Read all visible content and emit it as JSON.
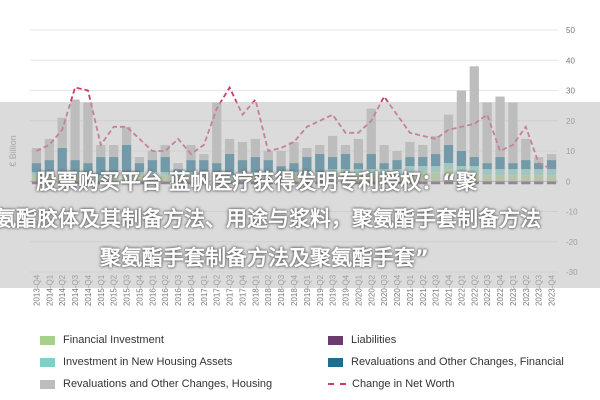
{
  "chart_data": {
    "type": "bar",
    "ylabel": "€ Billion",
    "ylim": [
      -30,
      50
    ],
    "yticks": [
      -30,
      -20,
      -10,
      0,
      10,
      20,
      30,
      40,
      50
    ],
    "categories": [
      "2013-Q4",
      "2014-Q1",
      "2014-Q2",
      "2014-Q3",
      "2014-Q4",
      "2015-Q1",
      "2015-Q2",
      "2015-Q3",
      "2015-Q4",
      "2016-Q1",
      "2016-Q2",
      "2016-Q3",
      "2016-Q4",
      "2017-Q1",
      "2017-Q2",
      "2017-Q3",
      "2017-Q4",
      "2018-Q1",
      "2018-Q2",
      "2018-Q3",
      "2018-Q4",
      "2019-Q1",
      "2019-Q2",
      "2019-Q3",
      "2019-Q4",
      "2020-Q1",
      "2020-Q2",
      "2020-Q3",
      "2020-Q4",
      "2021-Q1",
      "2021-Q2",
      "2021-Q3",
      "2021-Q4",
      "2022-Q1",
      "2022-Q2",
      "2022-Q3",
      "2022-Q4",
      "2023-Q1",
      "2023-Q2",
      "2023-Q3",
      "2023-Q4"
    ],
    "series": [
      {
        "name": "Financial Investment",
        "color": "#a8d08d",
        "values": [
          2,
          2,
          2,
          2,
          2,
          1,
          2,
          2,
          2,
          2,
          2,
          2,
          2,
          2,
          2,
          1,
          2,
          2,
          2,
          2,
          2,
          2,
          2,
          2,
          2,
          2,
          2,
          2,
          2,
          3,
          3,
          3,
          4,
          3,
          3,
          2,
          2,
          2,
          2,
          2,
          2
        ]
      },
      {
        "name": "Liabilities",
        "color": "#6b3a6e",
        "values": [
          -1,
          -1,
          -1,
          -1,
          -1,
          -1,
          -1,
          -1,
          -1,
          -1,
          -1,
          -1,
          -1,
          -1,
          -1,
          -1,
          -1,
          -1,
          -1,
          -1,
          -1,
          -1,
          -1,
          -1,
          -1,
          -1,
          -1,
          -1,
          -1,
          -1,
          -1,
          -1,
          -1,
          -1,
          -1,
          -1,
          -1,
          -1,
          -1,
          -1,
          -1
        ]
      },
      {
        "name": "Investment in New Housing Assets",
        "color": "#7fd0c8",
        "values": [
          1,
          1,
          1,
          1,
          1,
          1,
          1,
          1,
          1,
          1,
          1,
          1,
          1,
          1,
          1,
          1,
          1,
          1,
          1,
          1,
          1,
          1,
          1,
          2,
          2,
          2,
          2,
          2,
          2,
          2,
          2,
          2,
          2,
          2,
          2,
          2,
          2,
          2,
          2,
          2,
          2
        ]
      },
      {
        "name": "Revaluations and Other Changes, Financial",
        "color": "#1a6f8f",
        "values": [
          3,
          4,
          8,
          4,
          3,
          6,
          5,
          9,
          3,
          4,
          5,
          1,
          4,
          4,
          3,
          7,
          4,
          5,
          4,
          2,
          3,
          5,
          6,
          4,
          5,
          2,
          5,
          2,
          3,
          3,
          3,
          4,
          6,
          5,
          3,
          2,
          4,
          2,
          3,
          2,
          3
        ]
      },
      {
        "name": "Revaluations and Other Changes, Housing",
        "color": "#bdbdbd",
        "values": [
          5,
          7,
          10,
          20,
          20,
          4,
          4,
          6,
          2,
          3,
          4,
          2,
          5,
          2,
          20,
          5,
          6,
          6,
          3,
          5,
          7,
          3,
          3,
          7,
          3,
          8,
          15,
          6,
          3,
          5,
          4,
          6,
          10,
          20,
          30,
          20,
          20,
          20,
          7,
          2,
          2
        ]
      }
    ],
    "line": {
      "name": "Change in Net Worth",
      "color": "#cc3a6f",
      "values": [
        10,
        12,
        17,
        31,
        30,
        12,
        18,
        18,
        14,
        10,
        10,
        14,
        9,
        12,
        24,
        31,
        22,
        27,
        10,
        11,
        13,
        18,
        20,
        22,
        16,
        16,
        20,
        28,
        22,
        16,
        15,
        14,
        17,
        18,
        19,
        22,
        10,
        12,
        18,
        6,
        4
      ]
    }
  },
  "banner": {
    "line_1": "股票购买平台 蓝帆医疗获得发明专利授权：“聚",
    "line_2": "氨酯胶体及其制备方法、用途与浆料，聚氨酯手套制备方法",
    "line_3": "聚氨酯手套制备方法及聚氨酯手套”"
  },
  "legend": {
    "financial_investment": "Financial Investment",
    "liabilities": "Liabilities",
    "investment_housing": "Investment in New Housing Assets",
    "revaluations_financial": "Revaluations and Other Changes, Financial",
    "revaluations_housing": "Revaluations and Other Changes, Housing",
    "change_net_worth": "Change in Net Worth"
  }
}
